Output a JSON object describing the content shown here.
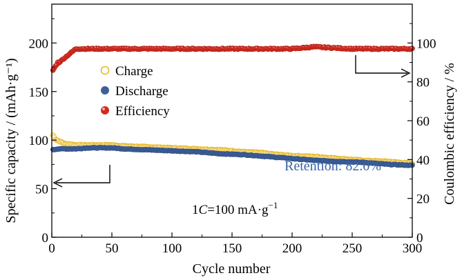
{
  "chart_data": {
    "type": "scatter",
    "xlabel": "Cycle number",
    "ylabel_left": "Specific capacity / (mAh·g⁻¹)",
    "ylabel_right": "Coulombic efficiency / %",
    "xlim": [
      0,
      300
    ],
    "ylim_left": [
      0,
      240
    ],
    "ylim_right": [
      0,
      120
    ],
    "xticks": [
      0,
      50,
      100,
      150,
      200,
      250,
      300
    ],
    "yticks_left": [
      0,
      50,
      100,
      150,
      200
    ],
    "yticks_right": [
      0,
      20,
      40,
      60,
      80,
      100
    ],
    "legend_position": "upper-left",
    "annotations": {
      "retention": "Retention: 82.0%",
      "rate_prefix": "1",
      "rate_italic": "C",
      "rate_suffix": "=100 mA·g",
      "rate_sup": "−1"
    },
    "series": [
      {
        "name": "Charge",
        "axis": "left",
        "marker": "open-circle",
        "color": "#e8b92a",
        "x": [
          1,
          2,
          3,
          4,
          5,
          6,
          8,
          10,
          12,
          15,
          20,
          25,
          30,
          40,
          50,
          60,
          80,
          100,
          120,
          140,
          160,
          175,
          180,
          200,
          220,
          240,
          260,
          280,
          300
        ],
        "y": [
          105,
          103,
          101,
          100,
          100,
          99,
          98,
          97,
          96,
          96,
          95,
          95,
          95,
          95,
          95,
          94,
          93,
          92,
          91,
          90,
          88,
          87,
          86,
          84,
          83,
          81,
          79,
          78,
          76
        ]
      },
      {
        "name": "Discharge",
        "axis": "left",
        "marker": "filled-circle",
        "color": "#3e5f9a",
        "x": [
          1,
          5,
          10,
          20,
          30,
          40,
          50,
          60,
          80,
          100,
          120,
          140,
          160,
          180,
          200,
          220,
          240,
          260,
          280,
          300
        ],
        "y": [
          90,
          91,
          91,
          91,
          92,
          92,
          92,
          91,
          90,
          89,
          88,
          86,
          85,
          83,
          81,
          79,
          78,
          77,
          75,
          74
        ]
      },
      {
        "name": "Efficiency",
        "axis": "right",
        "marker": "filled-circle",
        "color": "#d42a1e",
        "x": [
          1,
          2,
          3,
          4,
          5,
          6,
          8,
          10,
          12,
          14,
          16,
          18,
          20,
          25,
          30,
          50,
          100,
          150,
          200,
          218,
          250,
          300
        ],
        "y": [
          86,
          87,
          88,
          89,
          90,
          90,
          91,
          92,
          93,
          94,
          95,
          96,
          97,
          97,
          97,
          97,
          97,
          97,
          97,
          98,
          97,
          97
        ]
      }
    ]
  }
}
